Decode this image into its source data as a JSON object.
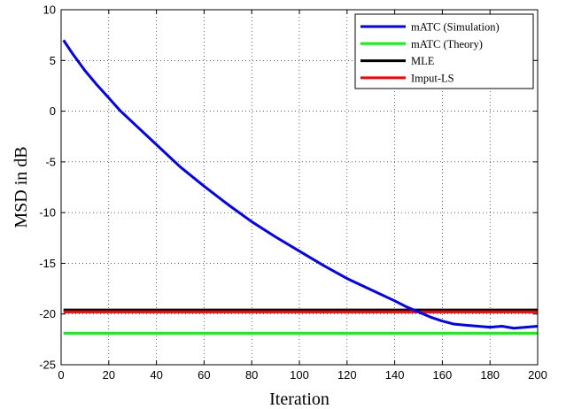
{
  "chart_data": {
    "type": "line",
    "title": "",
    "xlabel": "Iteration",
    "ylabel": "MSD in dB",
    "xlim": [
      0,
      200
    ],
    "ylim": [
      -25,
      10
    ],
    "xticks": [
      0,
      20,
      40,
      60,
      80,
      100,
      120,
      140,
      160,
      180,
      200
    ],
    "yticks": [
      -25,
      -20,
      -15,
      -10,
      -5,
      0,
      5,
      10
    ],
    "grid": true,
    "legend_position": "top-right",
    "series": [
      {
        "name": "mATC (Simulation)",
        "color": "#0000ff",
        "x": [
          1,
          5,
          10,
          15,
          20,
          25,
          30,
          40,
          50,
          60,
          70,
          80,
          90,
          100,
          110,
          120,
          130,
          140,
          145,
          150,
          155,
          160,
          165,
          170,
          175,
          180,
          185,
          190,
          195,
          200
        ],
        "y": [
          7,
          5.6,
          4.0,
          2.6,
          1.3,
          0.0,
          -1.1,
          -3.3,
          -5.5,
          -7.4,
          -9.2,
          -10.9,
          -12.4,
          -13.8,
          -15.2,
          -16.5,
          -17.6,
          -18.7,
          -19.3,
          -19.8,
          -20.3,
          -20.7,
          -21.0,
          -21.1,
          -21.2,
          -21.3,
          -21.2,
          -21.4,
          -21.3,
          -21.2
        ]
      },
      {
        "name": "mATC (Theory)",
        "color": "#00ff00",
        "x": [
          1,
          200
        ],
        "y": [
          -21.9,
          -21.9
        ]
      },
      {
        "name": "MLE",
        "color": "#000000",
        "x": [
          1,
          200
        ],
        "y": [
          -19.6,
          -19.6
        ]
      },
      {
        "name": "Imput-LS",
        "color": "#ff0000",
        "x": [
          1,
          200
        ],
        "y": [
          -19.8,
          -19.8
        ]
      }
    ]
  }
}
